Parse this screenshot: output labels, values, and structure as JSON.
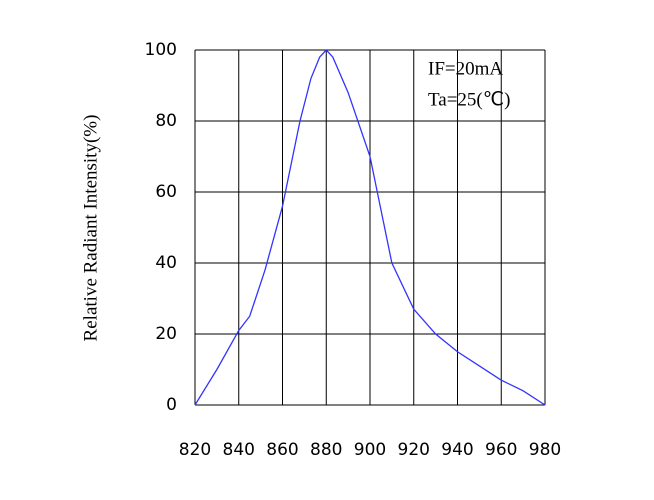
{
  "chart_data": {
    "type": "line",
    "y_label": "Relative Radiant Intensity(%)",
    "annotations": [
      "IF=20mA",
      "Ta=25(℃)"
    ],
    "x": [
      820,
      830,
      840,
      845,
      852,
      860,
      868,
      873,
      877,
      880,
      883,
      890,
      900,
      910,
      920,
      930,
      940,
      950,
      960,
      970,
      980
    ],
    "series": [
      {
        "color": "#3333ff",
        "values": [
          0,
          10,
          21,
          25,
          38,
          56,
          80,
          92,
          98,
          100,
          98,
          88,
          70,
          40,
          27,
          20,
          15,
          11,
          7,
          4,
          0
        ]
      }
    ],
    "xlim": [
      820,
      980
    ],
    "xticks": [
      820,
      840,
      860,
      880,
      900,
      920,
      940,
      960,
      980
    ],
    "ylim": [
      0,
      100
    ],
    "yticks": [
      0,
      20,
      40,
      60,
      80,
      100
    ],
    "grid": true
  }
}
